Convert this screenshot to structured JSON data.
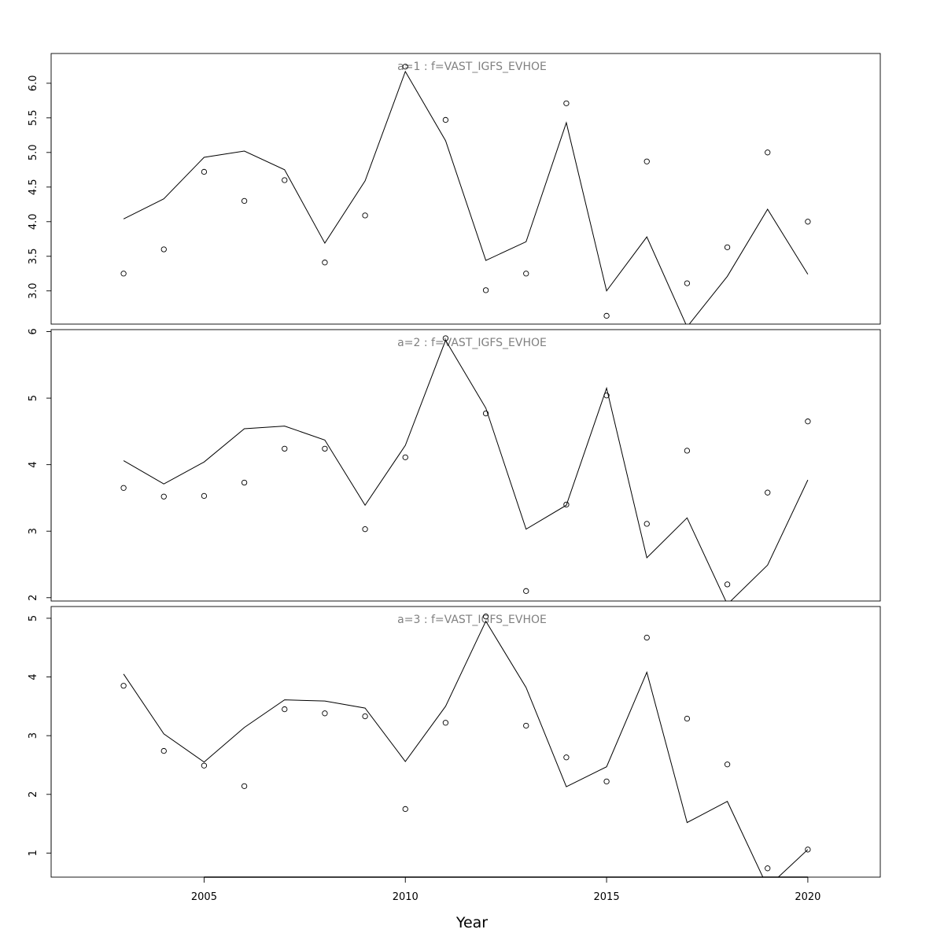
{
  "chart_data": {
    "type": "line",
    "xlabel": "Year",
    "x_ticks": [
      2005,
      2010,
      2015,
      2020
    ],
    "xlim": [
      2001.2,
      2021.8
    ],
    "panels": [
      {
        "title": "a=1  :  f=VAST_IGFS_EVHOE",
        "ylim": [
          2.52,
          6.43
        ],
        "y_ticks": [
          "3.0",
          "3.5",
          "4.0",
          "4.5",
          "5.0",
          "5.5",
          "6.0"
        ],
        "x": [
          2003,
          2004,
          2005,
          2006,
          2007,
          2008,
          2009,
          2010,
          2011,
          2012,
          2013,
          2014,
          2015,
          2016,
          2017,
          2018,
          2019,
          2020
        ],
        "series": [
          {
            "kind": "line",
            "values": [
              4.04,
              4.33,
              4.93,
              5.02,
              4.75,
              3.69,
              4.59,
              6.17,
              5.17,
              3.44,
              3.71,
              5.43,
              3.0,
              3.78,
              2.48,
              3.21,
              4.18,
              3.24
            ]
          },
          {
            "kind": "points",
            "values": [
              3.25,
              3.6,
              4.72,
              4.3,
              4.6,
              3.41,
              4.09,
              6.24,
              5.47,
              3.01,
              3.25,
              5.71,
              2.64,
              4.87,
              3.11,
              3.63,
              5.0,
              4.0
            ]
          }
        ]
      },
      {
        "title": "a=2  :  f=VAST_IGFS_EVHOE",
        "ylim": [
          1.95,
          6.03
        ],
        "y_ticks": [
          "2",
          "3",
          "4",
          "5",
          "6"
        ],
        "x": [
          2003,
          2004,
          2005,
          2006,
          2007,
          2008,
          2009,
          2010,
          2011,
          2012,
          2013,
          2014,
          2015,
          2016,
          2017,
          2018,
          2019,
          2020
        ],
        "series": [
          {
            "kind": "line",
            "values": [
              4.06,
              3.71,
              4.04,
              4.54,
              4.58,
              4.37,
              3.39,
              4.29,
              5.87,
              4.85,
              3.03,
              3.39,
              5.15,
              2.6,
              3.2,
              1.9,
              2.49,
              3.77
            ]
          },
          {
            "kind": "points",
            "values": [
              3.65,
              3.52,
              3.53,
              3.73,
              4.24,
              4.24,
              3.03,
              4.11,
              5.9,
              4.77,
              2.1,
              3.4,
              5.04,
              3.11,
              4.21,
              2.2,
              3.58,
              4.65
            ]
          }
        ]
      },
      {
        "title": "a=3  :  f=VAST_IGFS_EVHOE",
        "ylim": [
          0.59,
          5.2
        ],
        "y_ticks": [
          "1",
          "2",
          "3",
          "4",
          "5"
        ],
        "x": [
          2003,
          2004,
          2005,
          2006,
          2007,
          2008,
          2009,
          2010,
          2011,
          2012,
          2013,
          2014,
          2015,
          2016,
          2017,
          2018,
          2019,
          2020
        ],
        "series": [
          {
            "kind": "line",
            "values": [
              4.05,
              3.03,
              2.55,
              3.14,
              3.61,
              3.59,
              3.47,
              2.56,
              3.5,
              4.95,
              3.82,
              2.13,
              2.47,
              4.08,
              1.52,
              1.88,
              0.42,
              1.06
            ]
          },
          {
            "kind": "points",
            "values": [
              3.85,
              2.74,
              2.49,
              2.14,
              3.45,
              3.38,
              3.33,
              1.75,
              3.22,
              5.03,
              3.17,
              2.63,
              2.22,
              4.67,
              3.29,
              2.51,
              0.74,
              1.06
            ]
          }
        ]
      }
    ]
  }
}
